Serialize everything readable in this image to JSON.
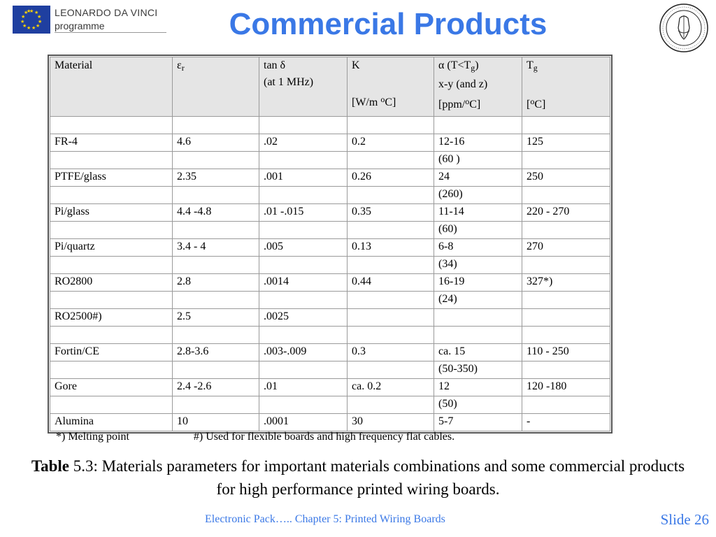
{
  "logo": {
    "line1": "LEONARDO DA VINCI",
    "line2": "programme"
  },
  "title": "Commercial Products",
  "table": {
    "header": {
      "material": "Material",
      "er_sym": "ε",
      "er_sub": "r",
      "tan_line1": "tan δ",
      "tan_line2": "(at 1 MHz)",
      "k_line1": "K",
      "k_line3a": "[W/m ",
      "k_line3b": "o",
      "k_line3c": "C]",
      "alpha_a": "α (T<T",
      "alpha_sub": "g",
      "alpha_b": ")",
      "alpha_line2": "x-y (and z)",
      "alpha_line3a": "[ppm/",
      "alpha_line3b": "o",
      "alpha_line3c": "C]",
      "tg_a": "T",
      "tg_sub": "g",
      "tg_line3a": "[",
      "tg_line3b": "o",
      "tg_line3c": "C]"
    },
    "rows": [
      [
        "",
        "",
        "",
        "",
        "",
        ""
      ],
      [
        "FR-4",
        "4.6",
        ".02",
        "0.2",
        "12-16",
        "125"
      ],
      [
        "",
        "",
        "",
        "",
        "(60 )",
        ""
      ],
      [
        "PTFE/glass",
        "2.35",
        ".001",
        "0.26",
        "24",
        "250"
      ],
      [
        "",
        "",
        "",
        "",
        "(260)",
        ""
      ],
      [
        "Pi/glass",
        "4.4 -4.8",
        ".01 -.015",
        "0.35",
        "11-14",
        "220 - 270"
      ],
      [
        "",
        "",
        "",
        "",
        "(60)",
        ""
      ],
      [
        "Pi/quartz",
        "3.4 - 4",
        ".005",
        "0.13",
        "6-8",
        "270"
      ],
      [
        "",
        "",
        "",
        "",
        "(34)",
        ""
      ],
      [
        "RO2800",
        "2.8",
        ".0014",
        "0.44",
        "16-19",
        "327*)"
      ],
      [
        "",
        "",
        "",
        "",
        "(24)",
        ""
      ],
      [
        "RO2500#)",
        "2.5",
        ".0025",
        "",
        "",
        ""
      ],
      [
        "",
        "",
        "",
        "",
        "",
        ""
      ],
      [
        "Fortin/CE",
        "2.8-3.6",
        ".003-.009",
        "0.3",
        "ca. 15",
        "110 - 250"
      ],
      [
        "",
        "",
        "",
        "",
        "(50-350)",
        ""
      ],
      [
        "Gore",
        "2.4 -2.6",
        ".01",
        "ca. 0.2",
        "12",
        "120 -180"
      ],
      [
        "",
        "",
        "",
        "",
        "(50)",
        ""
      ],
      [
        "Alumina",
        "10",
        ".0001",
        "30",
        "5-7",
        "-"
      ]
    ]
  },
  "footnotes": {
    "melting": "*) Melting point",
    "used_for": "#) Used for flexible boards and high frequency flat cables."
  },
  "caption": {
    "label": "Table",
    "text": " 5.3: Materials parameters for important materials combinations and some commercial products for high performance printed wiring boards."
  },
  "footer": {
    "text": "Electronic Pack…..   Chapter 5: Printed Wiring Boards",
    "slide": "Slide 26"
  },
  "colors": {
    "accent": "#3a78e6",
    "header_bg": "#e5e5e5"
  }
}
